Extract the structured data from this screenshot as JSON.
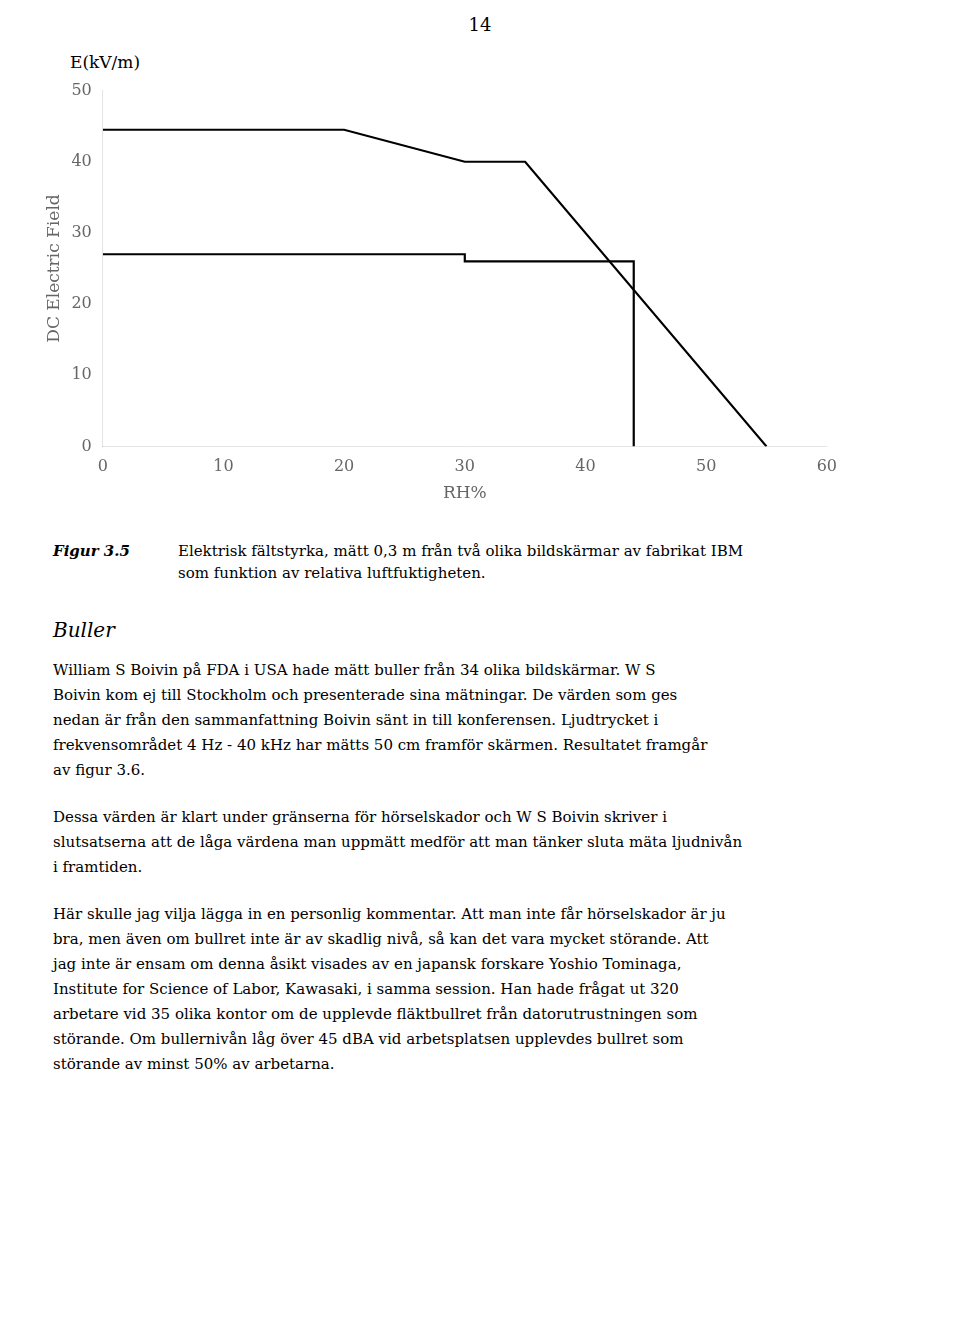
{
  "chart_data": {
    "type": "line",
    "page_number": "14",
    "top_label": "E(kV/m)",
    "xlabel": "RH%",
    "ylabel": "DC Electric Field",
    "series": [
      {
        "color": "#000000",
        "x": [
          0,
          20,
          30,
          35,
          55,
          55
        ],
        "values": [
          44.5,
          44.5,
          40,
          40,
          0,
          0
        ]
      },
      {
        "color": "#000000",
        "x": [
          0,
          30,
          30,
          44,
          44
        ],
        "values": [
          27,
          27,
          26,
          26,
          0
        ]
      }
    ],
    "xlim": [
      0,
      60
    ],
    "ylim": [
      0,
      50
    ],
    "xticks": [
      0,
      10,
      20,
      30,
      40,
      50,
      60
    ],
    "yticks": [
      0,
      10,
      20,
      30,
      40,
      50
    ],
    "grid": false,
    "caption": {
      "label": "Figur 3.5",
      "lines": [
        "Elektrisk fältstyrka, mätt 0,3 m från två olika bildskärmar av fabrikat IBM",
        "som funktion av relativa luftfuktigheten."
      ]
    },
    "section_heading": "Buller",
    "paragraphs": [
      [
        "William S Boivin på FDA i USA hade mätt buller från 34 olika bildskärmar. W S",
        "Boivin kom ej till Stockholm och presenterade sina mätningar. De värden som ges",
        "nedan är från den sammanfattning Boivin sänt in till konferensen. Ljudtrycket i",
        "frekvensområdet 4 Hz - 40 kHz har mätts 50 cm framför skärmen. Resultatet framgår",
        "av figur 3.6."
      ],
      [
        "Dessa värden är klart under gränserna för hörselskador och W S Boivin skriver i",
        "slutsatserna att de låga värdena man uppmätt medför att man tänker sluta mäta ljudnivån",
        "i framtiden."
      ],
      [
        "Här skulle jag vilja lägga in en personlig kommentar. Att man inte får hörselskador är ju",
        "bra, men även om bullret inte är av skadlig nivå, så kan det vara mycket störande. Att",
        "jag inte är ensam om denna åsikt visades av en japansk forskare Yoshio Tominaga,",
        "Institute for Science of Labor, Kawasaki, i samma session. Han hade frågat ut 320",
        "arbetare vid 35 olika kontor om de upplevde fläktbullret från datorutrustningen som",
        "störande. Om bullernivån låg över 45 dBA vid arbetsplatsen upplevdes bullret som",
        "störande av minst 50% av arbetarna."
      ]
    ]
  }
}
